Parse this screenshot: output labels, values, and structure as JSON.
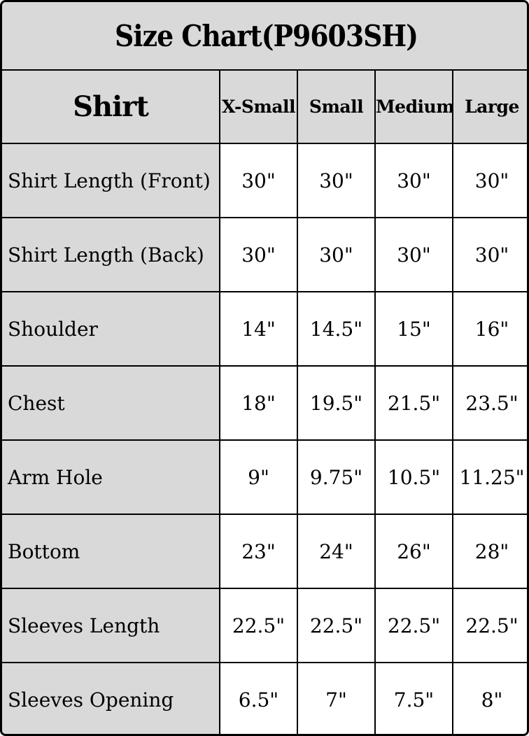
{
  "title": "Size Chart(P9603SH)",
  "table": {
    "corner_label": "Shirt",
    "size_headers": [
      "X-Small",
      "Small",
      "Medium",
      "Large"
    ],
    "rows": [
      {
        "label": "Shirt Length (Front)",
        "values": [
          "30\"",
          "30\"",
          "30\"",
          "30\""
        ]
      },
      {
        "label": "Shirt Length (Back)",
        "values": [
          "30\"",
          "30\"",
          "30\"",
          "30\""
        ]
      },
      {
        "label": "Shoulder",
        "values": [
          "14\"",
          "14.5\"",
          "15\"",
          "16\""
        ]
      },
      {
        "label": "Chest",
        "values": [
          "18\"",
          "19.5\"",
          "21.5\"",
          "23.5\""
        ]
      },
      {
        "label": "Arm Hole",
        "values": [
          "9\"",
          "9.75\"",
          "10.5\"",
          "11.25\""
        ]
      },
      {
        "label": "Bottom",
        "values": [
          "23\"",
          "24\"",
          "26\"",
          "28\""
        ]
      },
      {
        "label": "Sleeves Length",
        "values": [
          "22.5\"",
          "22.5\"",
          "22.5\"",
          "22.5\""
        ]
      },
      {
        "label": "Sleeves Opening",
        "values": [
          "6.5\"",
          "7\"",
          "7.5\"",
          "8\""
        ]
      }
    ]
  },
  "colors": {
    "cell_gray": "#d9d9d9",
    "cell_white": "#ffffff",
    "border": "#000000",
    "text": "#000000"
  },
  "chart_data": {
    "type": "table",
    "title": "Size Chart(P9603SH)",
    "columns": [
      "Shirt",
      "X-Small",
      "Small",
      "Medium",
      "Large"
    ],
    "rows": [
      [
        "Shirt Length (Front)",
        "30\"",
        "30\"",
        "30\"",
        "30\""
      ],
      [
        "Shirt Length (Back)",
        "30\"",
        "30\"",
        "30\"",
        "30\""
      ],
      [
        "Shoulder",
        "14\"",
        "14.5\"",
        "15\"",
        "16\""
      ],
      [
        "Chest",
        "18\"",
        "19.5\"",
        "21.5\"",
        "23.5\""
      ],
      [
        "Arm Hole",
        "9\"",
        "9.75\"",
        "10.5\"",
        "11.25\""
      ],
      [
        "Bottom",
        "23\"",
        "24\"",
        "26\"",
        "28\""
      ],
      [
        "Sleeves Length",
        "22.5\"",
        "22.5\"",
        "22.5\"",
        "22.5\""
      ],
      [
        "Sleeves Opening",
        "6.5\"",
        "7\"",
        "7.5\"",
        "8\""
      ]
    ]
  }
}
